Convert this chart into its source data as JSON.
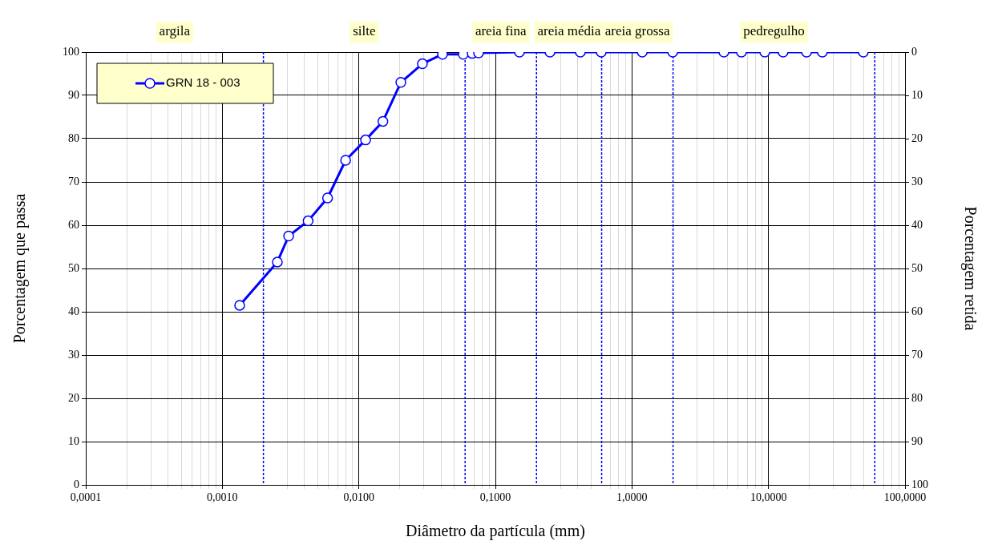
{
  "chart_data": {
    "type": "line",
    "xlabel": "Diâmetro da partícula (mm)",
    "ylabel": "Porcentagem que passa",
    "y2label": "Porcentagem retida",
    "log": "x",
    "grid": true,
    "legend": "top left",
    "marker": "circle",
    "line_style": "solid",
    "xlim": [
      0.0001,
      100
    ],
    "ylim": [
      0,
      100
    ],
    "y2lim": [
      100,
      0
    ],
    "xticks": [
      {
        "value": 0.0001,
        "label": "0,0001"
      },
      {
        "value": 0.0002,
        "label": null
      },
      {
        "value": 0.0003,
        "label": null
      },
      {
        "value": 0.0004,
        "label": null
      },
      {
        "value": 0.0005,
        "label": null
      },
      {
        "value": 0.0006,
        "label": null
      },
      {
        "value": 0.0007,
        "label": null
      },
      {
        "value": 0.0008,
        "label": null
      },
      {
        "value": 0.0009,
        "label": null
      },
      {
        "value": 0.001,
        "label": "0,0010"
      },
      {
        "value": 0.003,
        "label": null
      },
      {
        "value": 0.004,
        "label": null
      },
      {
        "value": 0.005,
        "label": null
      },
      {
        "value": 0.006,
        "label": null
      },
      {
        "value": 0.007,
        "label": null
      },
      {
        "value": 0.008,
        "label": null
      },
      {
        "value": 0.009,
        "label": null
      },
      {
        "value": 0.01,
        "label": "0,0100"
      },
      {
        "value": 0.02,
        "label": null
      },
      {
        "value": 0.03,
        "label": null
      },
      {
        "value": 0.04,
        "label": null
      },
      {
        "value": 0.05,
        "label": null
      },
      {
        "value": 0.07,
        "label": null
      },
      {
        "value": 0.08,
        "label": null
      },
      {
        "value": 0.09,
        "label": null
      },
      {
        "value": 0.1,
        "label": "0,1000"
      },
      {
        "value": 0.3,
        "label": null
      },
      {
        "value": 0.4,
        "label": null
      },
      {
        "value": 0.5,
        "label": null
      },
      {
        "value": 0.7,
        "label": null
      },
      {
        "value": 0.8,
        "label": null
      },
      {
        "value": 0.9,
        "label": null
      },
      {
        "value": 1,
        "label": "1,0000"
      },
      {
        "value": 3,
        "label": null
      },
      {
        "value": 4,
        "label": null
      },
      {
        "value": 5,
        "label": null
      },
      {
        "value": 6,
        "label": null
      },
      {
        "value": 7,
        "label": null
      },
      {
        "value": 8,
        "label": null
      },
      {
        "value": 9,
        "label": null
      },
      {
        "value": 10,
        "label": "10,0000"
      },
      {
        "value": 20,
        "label": null
      },
      {
        "value": 30,
        "label": null
      },
      {
        "value": 40,
        "label": null
      },
      {
        "value": 50,
        "label": null
      },
      {
        "value": 70,
        "label": null
      },
      {
        "value": 80,
        "label": null
      },
      {
        "value": 90,
        "label": null
      },
      {
        "value": 100,
        "label": "100,0000"
      }
    ],
    "yticks": [
      0,
      10,
      20,
      30,
      40,
      50,
      60,
      70,
      80,
      90,
      100
    ],
    "y2ticks": [
      0,
      10,
      20,
      30,
      40,
      50,
      60,
      70,
      80,
      90,
      100
    ],
    "ref_lines": [
      {
        "axis": "x",
        "value": 0.002,
        "color": "#0000ff",
        "line_style": "dotted"
      },
      {
        "axis": "x",
        "value": 0.06,
        "color": "#0000ff",
        "line_style": "dotted"
      },
      {
        "axis": "x",
        "value": 0.2,
        "color": "#0000ff",
        "line_style": "dotted"
      },
      {
        "axis": "x",
        "value": 0.6,
        "color": "#0000ff",
        "line_style": "dotted"
      },
      {
        "axis": "x",
        "value": 2,
        "color": "#0000ff",
        "line_style": "dotted"
      },
      {
        "axis": "x",
        "value": 60,
        "color": "#0000ff",
        "line_style": "dotted"
      }
    ],
    "annotations": [
      "argila",
      "silte",
      "areia fina",
      "areia média",
      "areia grossa",
      "pedregulho"
    ],
    "series": [
      {
        "name": "GRN 18 - 003",
        "color": "#0000ff",
        "x": [
          0.00134,
          0.00253,
          0.00306,
          0.00425,
          0.0059,
          0.008,
          0.0112,
          0.015,
          0.0203,
          0.0292,
          0.041,
          0.0582,
          0.0676,
          0.0753,
          0.15,
          0.251,
          0.419,
          0.596,
          1.19,
          1.99,
          4.71,
          6.34,
          9.4,
          12.8,
          19,
          24.8,
          49.5
        ],
        "values": [
          41.5,
          51.5,
          57.5,
          61,
          66.3,
          75,
          79.7,
          84,
          93,
          97.3,
          99.5,
          99.5,
          99.7,
          99.8,
          100,
          100,
          100,
          100,
          100,
          100,
          100,
          100,
          100,
          100,
          100,
          100,
          100
        ]
      }
    ]
  }
}
